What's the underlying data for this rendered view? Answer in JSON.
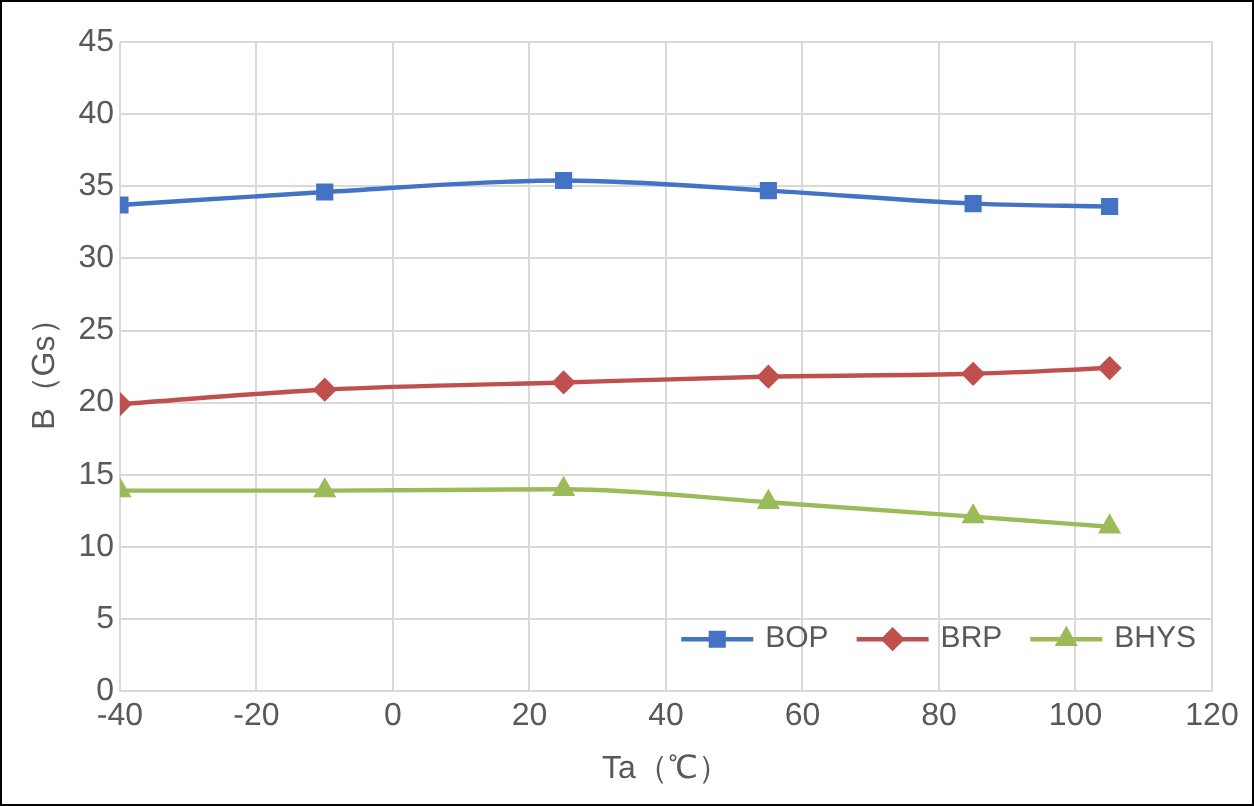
{
  "chart_data": {
    "type": "line",
    "xlabel": "Ta（℃）",
    "ylabel": "B（Gs）",
    "x": [
      -40,
      -10,
      25,
      55,
      85,
      105
    ],
    "xlim": [
      -40,
      120
    ],
    "xticks": [
      -40,
      -20,
      0,
      20,
      40,
      60,
      80,
      100,
      120
    ],
    "ylim": [
      0,
      45
    ],
    "yticks": [
      0,
      5,
      10,
      15,
      20,
      25,
      30,
      35,
      40,
      45
    ],
    "grid": true,
    "legend": "bottom right",
    "series": [
      {
        "name": "BOP",
        "color": "#4472c4",
        "marker": "square",
        "values": [
          33.7,
          34.6,
          35.4,
          34.7,
          33.8,
          33.6
        ]
      },
      {
        "name": "BRP",
        "color": "#c0504d",
        "marker": "diamond",
        "values": [
          19.9,
          20.9,
          21.4,
          21.8,
          22.0,
          22.4
        ]
      },
      {
        "name": "BHYS",
        "color": "#9bbb59",
        "marker": "triangle",
        "values": [
          13.9,
          13.9,
          14.0,
          13.1,
          12.1,
          11.4
        ]
      }
    ]
  }
}
